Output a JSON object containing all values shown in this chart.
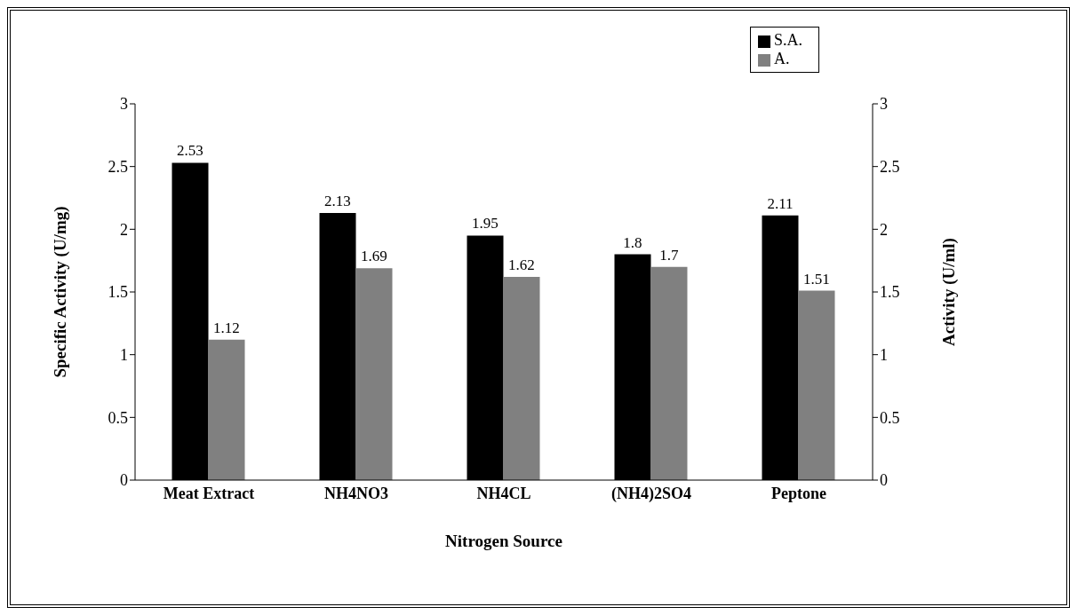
{
  "chart_data": {
    "type": "bar",
    "xlabel": "Nitrogen Source",
    "ylabel": "Specific Activity (U/mg)",
    "y2label": "Activity (U/ml)",
    "categories": [
      "Meat Extract",
      "NH4NO3",
      "NH4CL",
      "(NH4)2SO4",
      "Peptone"
    ],
    "series": [
      {
        "name": "S.A.",
        "color": "#000000",
        "values": [
          2.53,
          2.13,
          1.95,
          1.8,
          2.11
        ]
      },
      {
        "name": "A.",
        "color": "#808080",
        "values": [
          1.12,
          1.69,
          1.62,
          1.7,
          1.51
        ],
        "axis": "y2"
      }
    ],
    "ylim": [
      0,
      3
    ],
    "yticks": [
      0,
      0.5,
      1,
      1.5,
      2,
      2.5,
      3
    ],
    "y2lim": [
      0,
      3
    ],
    "y2ticks": [
      0,
      0.5,
      1,
      1.5,
      2,
      2.5,
      3
    ],
    "data_labels": true,
    "grid": false,
    "legend": "top right"
  }
}
